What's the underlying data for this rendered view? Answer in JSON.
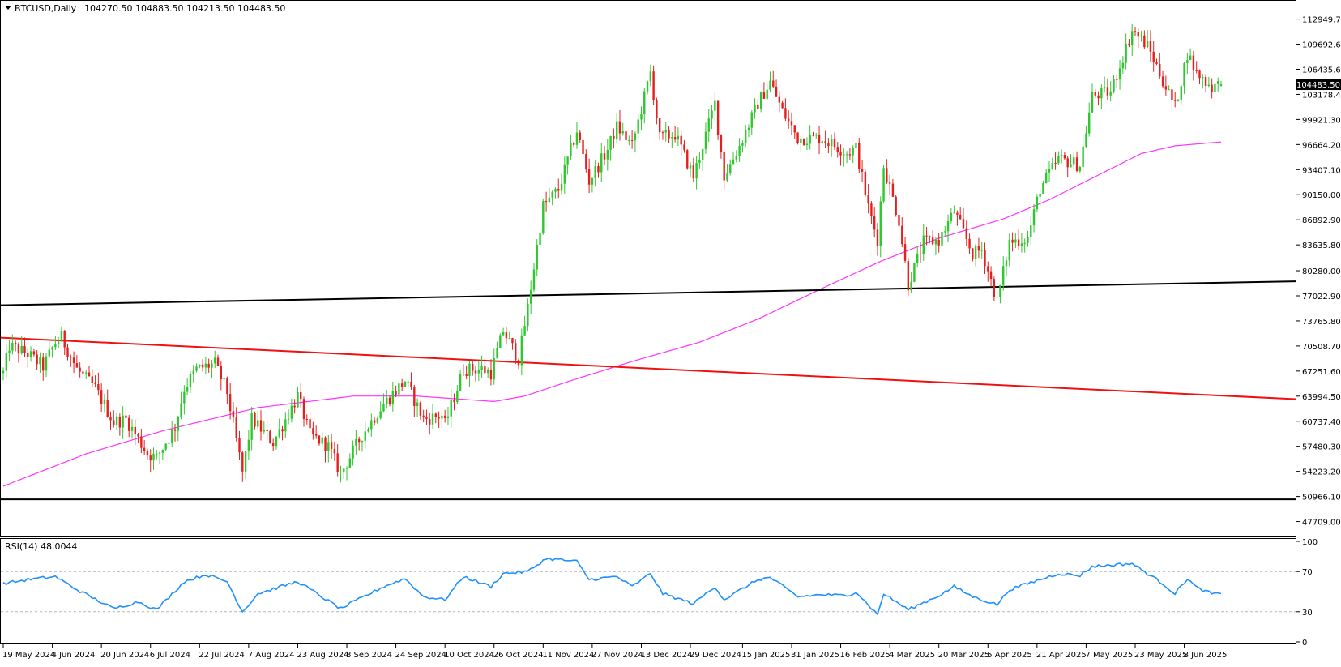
{
  "window": {
    "symbol_label": "BTCUSD,Daily",
    "ohlc_label": "104270.50 104883.50 104213.50 104483.50",
    "current_price_label": "104483.50"
  },
  "colors": {
    "background": "#ffffff",
    "frame": "#000000",
    "bull_candle": "#2dc82d",
    "bear_candle": "#e61e1e",
    "ma_line": "#ff33ff",
    "trend_red": "#ee1111",
    "trend_black": "#000000",
    "rsi_line": "#1e90ff",
    "rsi_levels": "#b4b4b4",
    "price_tag_bg": "#000000",
    "price_tag_text": "#ffffff"
  },
  "chart_data": [
    {
      "type": "candlestick",
      "title": "BTCUSD,Daily",
      "ohlc_last": {
        "open": 104270.5,
        "high": 104883.5,
        "low": 104213.5,
        "close": 104483.5
      },
      "y_ticks": [
        "112949.70",
        "109692.65",
        "106435.60",
        "103178.40",
        "99921.30",
        "96664.20",
        "93407.10",
        "90150.00",
        "86892.90",
        "83635.80",
        "80280.00",
        "77022.90",
        "73765.80",
        "70508.70",
        "67251.60",
        "63994.50",
        "60737.40",
        "57480.30",
        "54223.20",
        "50966.10",
        "47709.00"
      ],
      "x_ticks": [
        "19 May 2024",
        "4 Jun 2024",
        "20 Jun 2024",
        "6 Jul 2024",
        "22 Jul 2024",
        "7 Aug 2024",
        "23 Aug 2024",
        "8 Sep 2024",
        "24 Sep 2024",
        "10 Oct 2024",
        "26 Oct 2024",
        "11 Nov 2024",
        "27 Nov 2024",
        "13 Dec 2024",
        "29 Dec 2024",
        "15 Jan 2025",
        "31 Jan 2025",
        "16 Feb 2025",
        "4 Mar 2025",
        "20 Mar 2025",
        "5 Apr 2025",
        "21 Apr 2025",
        "7 May 2025",
        "23 May 2025",
        "8 Jun 2025"
      ],
      "ylim": [
        46400,
        114800
      ],
      "start_date": "2024-05-19",
      "end_date": "2025-06-20",
      "close_path": [
        [
          "2024-05-19",
          67000
        ],
        [
          "2024-05-21",
          70500
        ],
        [
          "2024-05-27",
          69500
        ],
        [
          "2024-06-01",
          67800
        ],
        [
          "2024-06-05",
          71000
        ],
        [
          "2024-06-07",
          71600
        ],
        [
          "2024-06-12",
          67500
        ],
        [
          "2024-06-18",
          65000
        ],
        [
          "2024-06-24",
          60600
        ],
        [
          "2024-06-28",
          61000
        ],
        [
          "2024-07-05",
          56500
        ],
        [
          "2024-07-08",
          56000
        ],
        [
          "2024-07-14",
          60000
        ],
        [
          "2024-07-17",
          65000
        ],
        [
          "2024-07-21",
          67500
        ],
        [
          "2024-07-27",
          68200
        ],
        [
          "2024-07-31",
          64500
        ],
        [
          "2024-08-05",
          54100
        ],
        [
          "2024-08-08",
          61000
        ],
        [
          "2024-08-15",
          58000
        ],
        [
          "2024-08-23",
          64000
        ],
        [
          "2024-08-27",
          59000
        ],
        [
          "2024-09-02",
          57500
        ],
        [
          "2024-09-06",
          53900
        ],
        [
          "2024-09-13",
          59000
        ],
        [
          "2024-09-20",
          63000
        ],
        [
          "2024-09-27",
          66000
        ],
        [
          "2024-10-03",
          61000
        ],
        [
          "2024-10-09",
          61500
        ],
        [
          "2024-10-10",
          60300
        ],
        [
          "2024-10-16",
          67500
        ],
        [
          "2024-10-22",
          67500
        ],
        [
          "2024-10-25",
          67000
        ],
        [
          "2024-10-29",
          72500
        ],
        [
          "2024-11-03",
          68800
        ],
        [
          "2024-11-06",
          75500
        ],
        [
          "2024-11-11",
          88700
        ],
        [
          "2024-11-16",
          90800
        ],
        [
          "2024-11-22",
          98500
        ],
        [
          "2024-11-26",
          91900
        ],
        [
          "2024-12-02",
          96000
        ],
        [
          "2024-12-05",
          99000
        ],
        [
          "2024-12-10",
          96500
        ],
        [
          "2024-12-16",
          106000
        ],
        [
          "2024-12-19",
          97500
        ],
        [
          "2024-12-24",
          98000
        ],
        [
          "2024-12-30",
          92500
        ],
        [
          "2025-01-06",
          102000
        ],
        [
          "2025-01-09",
          92500
        ],
        [
          "2025-01-14",
          96500
        ],
        [
          "2025-01-20",
          102000
        ],
        [
          "2025-01-24",
          104800
        ],
        [
          "2025-01-28",
          101000
        ],
        [
          "2025-02-02",
          97500
        ],
        [
          "2025-02-10",
          97500
        ],
        [
          "2025-02-18",
          95600
        ],
        [
          "2025-02-21",
          96200
        ],
        [
          "2025-02-25",
          88500
        ],
        [
          "2025-02-28",
          84300
        ],
        [
          "2025-03-02",
          94000
        ],
        [
          "2025-03-07",
          86800
        ],
        [
          "2025-03-10",
          78500
        ],
        [
          "2025-03-15",
          84000
        ],
        [
          "2025-03-20",
          84200
        ],
        [
          "2025-03-25",
          88000
        ],
        [
          "2025-03-31",
          82500
        ],
        [
          "2025-04-03",
          83000
        ],
        [
          "2025-04-08",
          76300
        ],
        [
          "2025-04-12",
          84000
        ],
        [
          "2025-04-18",
          84500
        ],
        [
          "2025-04-22",
          91000
        ],
        [
          "2025-04-28",
          94800
        ],
        [
          "2025-05-05",
          94000
        ],
        [
          "2025-05-09",
          103000
        ],
        [
          "2025-05-15",
          103500
        ],
        [
          "2025-05-22",
          111500
        ],
        [
          "2025-05-27",
          109500
        ],
        [
          "2025-06-01",
          105000
        ],
        [
          "2025-06-05",
          101500
        ],
        [
          "2025-06-09",
          108500
        ],
        [
          "2025-06-12",
          106000
        ],
        [
          "2025-06-17",
          104100
        ],
        [
          "2025-06-20",
          104483.5
        ]
      ],
      "moving_average": [
        [
          "2024-05-19",
          52300
        ],
        [
          "2024-06-15",
          56500
        ],
        [
          "2024-07-10",
          59500
        ],
        [
          "2024-08-10",
          62500
        ],
        [
          "2024-09-10",
          64000
        ],
        [
          "2024-10-01",
          64000
        ],
        [
          "2024-10-26",
          63300
        ],
        [
          "2024-11-05",
          64000
        ],
        [
          "2024-11-20",
          66000
        ],
        [
          "2024-12-10",
          68500
        ],
        [
          "2025-01-01",
          71000
        ],
        [
          "2025-01-20",
          74000
        ],
        [
          "2025-02-10",
          78000
        ],
        [
          "2025-03-01",
          81500
        ],
        [
          "2025-03-20",
          84500
        ],
        [
          "2025-04-10",
          87000
        ],
        [
          "2025-04-25",
          89500
        ],
        [
          "2025-05-10",
          92500
        ],
        [
          "2025-05-25",
          95500
        ],
        [
          "2025-06-05",
          96500
        ],
        [
          "2025-06-20",
          97000
        ]
      ],
      "trendlines": [
        {
          "color": "red",
          "from": [
            "2024-05-19",
            71600
          ],
          "to": [
            "2025-06-20",
            63600
          ]
        },
        {
          "color": "black",
          "from": [
            "2024-05-19",
            75800
          ],
          "to": [
            "2025-06-20",
            78900
          ]
        },
        {
          "color": "black",
          "from": [
            "2024-05-19",
            50600
          ],
          "to": [
            "2025-06-20",
            50600
          ]
        }
      ]
    },
    {
      "type": "line",
      "title": "RSI(14) 48.0044",
      "label": "RSI(14) 48.0044",
      "y_ticks": [
        "100",
        "70",
        "30",
        "0"
      ],
      "levels": [
        70,
        30
      ],
      "ylim": [
        0,
        100
      ],
      "values_path": [
        [
          "2024-05-19",
          58
        ],
        [
          "2024-05-27",
          62
        ],
        [
          "2024-06-05",
          65
        ],
        [
          "2024-06-12",
          52
        ],
        [
          "2024-06-24",
          33
        ],
        [
          "2024-07-02",
          40
        ],
        [
          "2024-07-08",
          32
        ],
        [
          "2024-07-17",
          60
        ],
        [
          "2024-07-24",
          67
        ],
        [
          "2024-07-31",
          60
        ],
        [
          "2024-08-05",
          30
        ],
        [
          "2024-08-10",
          48
        ],
        [
          "2024-08-23",
          60
        ],
        [
          "2024-09-06",
          33
        ],
        [
          "2024-09-20",
          55
        ],
        [
          "2024-09-27",
          63
        ],
        [
          "2024-10-03",
          45
        ],
        [
          "2024-10-10",
          42
        ],
        [
          "2024-10-16",
          65
        ],
        [
          "2024-10-25",
          55
        ],
        [
          "2024-10-29",
          68
        ],
        [
          "2024-11-06",
          70
        ],
        [
          "2024-11-12",
          83
        ],
        [
          "2024-11-22",
          80
        ],
        [
          "2024-11-26",
          62
        ],
        [
          "2024-12-05",
          65
        ],
        [
          "2024-12-10",
          55
        ],
        [
          "2024-12-16",
          68
        ],
        [
          "2024-12-20",
          48
        ],
        [
          "2024-12-30",
          38
        ],
        [
          "2025-01-06",
          55
        ],
        [
          "2025-01-09",
          42
        ],
        [
          "2025-01-20",
          62
        ],
        [
          "2025-01-24",
          64
        ],
        [
          "2025-02-02",
          45
        ],
        [
          "2025-02-10",
          47
        ],
        [
          "2025-02-18",
          46
        ],
        [
          "2025-02-21",
          50
        ],
        [
          "2025-02-28",
          27
        ],
        [
          "2025-03-02",
          48
        ],
        [
          "2025-03-10",
          32
        ],
        [
          "2025-03-20",
          46
        ],
        [
          "2025-03-25",
          55
        ],
        [
          "2025-03-31",
          45
        ],
        [
          "2025-04-08",
          37
        ],
        [
          "2025-04-12",
          52
        ],
        [
          "2025-04-22",
          62
        ],
        [
          "2025-04-28",
          68
        ],
        [
          "2025-05-05",
          66
        ],
        [
          "2025-05-09",
          75
        ],
        [
          "2025-05-22",
          78
        ],
        [
          "2025-06-01",
          58
        ],
        [
          "2025-06-05",
          48
        ],
        [
          "2025-06-09",
          63
        ],
        [
          "2025-06-12",
          54
        ],
        [
          "2025-06-17",
          48
        ],
        [
          "2025-06-20",
          48
        ]
      ]
    }
  ]
}
